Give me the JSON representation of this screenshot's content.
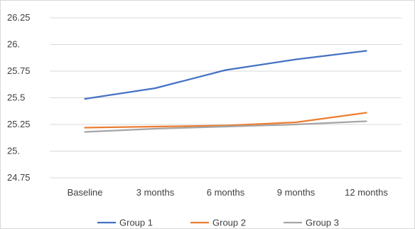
{
  "chart_data": {
    "type": "line",
    "title": "",
    "xlabel": "",
    "ylabel": "",
    "categories": [
      "Baseline",
      "3 months",
      "6 months",
      "9 months",
      "12 months"
    ],
    "y_ticks": [
      "26.25",
      "26.",
      "25.75",
      "25.5",
      "25.25",
      "25.",
      "24.75"
    ],
    "ylim": [
      24.75,
      26.25
    ],
    "grid": "horizontal",
    "legend": "bottom",
    "series": [
      {
        "name": "Group 1",
        "color": "#4472C4",
        "values": [
          25.49,
          25.59,
          25.76,
          25.86,
          25.94
        ]
      },
      {
        "name": "Group 2",
        "color": "#ED7D31",
        "values": [
          25.22,
          25.23,
          25.24,
          25.27,
          25.36
        ]
      },
      {
        "name": "Group 3",
        "color": "#A5A5A5",
        "values": [
          25.18,
          25.21,
          25.23,
          25.25,
          25.28
        ]
      }
    ]
  }
}
